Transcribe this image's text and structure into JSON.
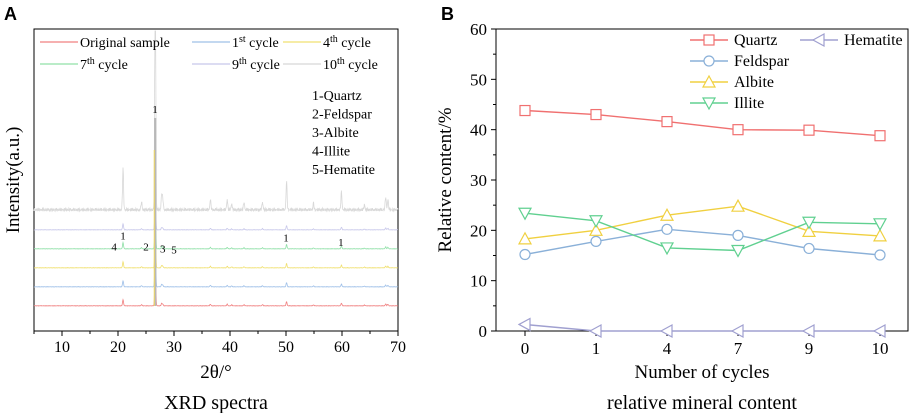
{
  "chart_data": [
    {
      "panel_label": "A",
      "type": "line",
      "title": "XRD spectra",
      "xlabel": "2θ/°",
      "ylabel": "Intensity(a.u.)",
      "xlim": [
        5,
        70
      ],
      "x_ticks": [
        10,
        20,
        30,
        40,
        50,
        60,
        70
      ],
      "legend": [
        {
          "label": "Original sample",
          "color": "#f08080"
        },
        {
          "label": "1",
          "sup": "st",
          "suffix": " cycle",
          "color": "#9fc0e8"
        },
        {
          "label": "4",
          "sup": "th",
          "suffix": " cycle",
          "color": "#f0e070"
        },
        {
          "label": "7",
          "sup": "th",
          "suffix": " cycle",
          "color": "#90e0a8"
        },
        {
          "label": "9",
          "sup": "th",
          "suffix": " cycle",
          "color": "#c8c8ea"
        },
        {
          "label": "10",
          "sup": "th",
          "suffix": " cycle",
          "color": "#d8d8d8"
        }
      ],
      "series_order_bottom_to_top": [
        "Original sample",
        "1st cycle",
        "4th cycle",
        "7th cycle",
        "9th cycle",
        "10th cycle"
      ],
      "peaks": [
        {
          "pos": 20.9,
          "h": 0.16
        },
        {
          "pos": 24.2,
          "h": 0.03
        },
        {
          "pos": 26.65,
          "h": 1.0
        },
        {
          "pos": 27.8,
          "h": 0.06
        },
        {
          "pos": 28.0,
          "h": 0.04
        },
        {
          "pos": 36.5,
          "h": 0.04
        },
        {
          "pos": 39.5,
          "h": 0.04
        },
        {
          "pos": 40.3,
          "h": 0.025
        },
        {
          "pos": 42.5,
          "h": 0.03
        },
        {
          "pos": 45.8,
          "h": 0.03
        },
        {
          "pos": 50.1,
          "h": 0.11
        },
        {
          "pos": 54.9,
          "h": 0.025
        },
        {
          "pos": 59.9,
          "h": 0.07
        },
        {
          "pos": 64.0,
          "h": 0.02
        },
        {
          "pos": 67.8,
          "h": 0.05
        },
        {
          "pos": 68.2,
          "h": 0.04
        }
      ],
      "peak_annotations": [
        {
          "text": "1",
          "x": 26.6,
          "level": 1.0
        },
        {
          "text": "1",
          "x": 20.9,
          "level": 0.42
        },
        {
          "text": "4",
          "x": 19.3,
          "level": 0.37
        },
        {
          "text": "2",
          "x": 25.0,
          "level": 0.37
        },
        {
          "text": "3",
          "x": 28.0,
          "level": 0.36
        },
        {
          "text": "5",
          "x": 30.0,
          "level": 0.355
        },
        {
          "text": "1",
          "x": 50.0,
          "level": 0.41
        },
        {
          "text": "1",
          "x": 59.8,
          "level": 0.39
        }
      ],
      "phase_legend": [
        "1-Quartz",
        "2-Feldspar",
        "3-Albite",
        "4-Illite",
        "5-Hematite"
      ]
    },
    {
      "panel_label": "B",
      "type": "line",
      "title": "relative mineral content",
      "xlabel": "Number of cycles",
      "ylabel": "Relative content/%",
      "categories": [
        "0",
        "1",
        "4",
        "7",
        "9",
        "10"
      ],
      "ylim": [
        0,
        60
      ],
      "y_ticks": [
        0,
        10,
        20,
        30,
        40,
        50,
        60
      ],
      "series": [
        {
          "name": "Quartz",
          "color": "#f07070",
          "marker": "square",
          "values": [
            43.8,
            43.0,
            41.6,
            40.0,
            39.9,
            38.8
          ]
        },
        {
          "name": "Feldspar",
          "color": "#8ab0d8",
          "marker": "circle",
          "values": [
            15.2,
            17.8,
            20.2,
            19.0,
            16.4,
            15.1
          ]
        },
        {
          "name": "Albite",
          "color": "#f0d040",
          "marker": "triangle-up",
          "values": [
            18.3,
            20.0,
            23.0,
            24.8,
            19.8,
            18.9
          ]
        },
        {
          "name": "Illite",
          "color": "#60d090",
          "marker": "triangle-down",
          "values": [
            23.4,
            21.9,
            16.5,
            16.0,
            21.6,
            21.3
          ]
        },
        {
          "name": "Hematite",
          "color": "#a0a0d0",
          "marker": "triangle-left",
          "values": [
            1.3,
            0,
            0,
            0,
            0,
            0
          ]
        }
      ]
    }
  ]
}
